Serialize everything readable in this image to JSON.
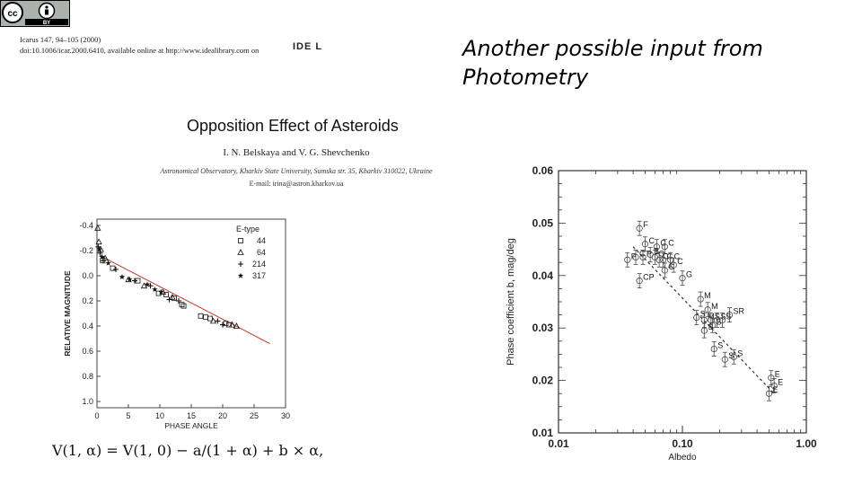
{
  "header": {
    "cc_badge": {
      "cc": "cc",
      "by": "BY"
    },
    "citation_line1": "Icarus 147, 94–105 (2000)",
    "citation_line2": "doi:10.1006/icar.2000.6410, available online at http://www.idealibrary.com on",
    "ideal_logo": "IDE L",
    "slide_title_line1": "Another possible input from",
    "slide_title_line2": "Photometry"
  },
  "paper": {
    "title": "Opposition Effect of Asteroids",
    "authors": "I. N. Belskaya and V. G. Shevchenko",
    "affiliation": "Astronomical Observatory, Kharkiv State University, Sumska str. 35, Kharkiv 310022, Ukraine",
    "email": "E-mail: irina@astron.kharkov.ua",
    "formula": "V(1, α) = V(1, 0) − a/(1 + α) + b × α,"
  },
  "chart_data": [
    {
      "type": "scatter",
      "title": "",
      "xlabel": "PHASE ANGLE",
      "ylabel": "RELATIVE MAGNITUDE",
      "xlim": [
        0,
        30
      ],
      "ylim": [
        -0.45,
        1.05
      ],
      "y_inverted": true,
      "x_ticks": [
        "0",
        "5",
        "10",
        "15",
        "20",
        "25",
        "30"
      ],
      "y_ticks": [
        "-0.4",
        "-0.2",
        "0.0",
        "0.2",
        "0.4",
        "0.6",
        "0.8",
        "1.0"
      ],
      "legend_title": "E-type",
      "legend_position": "top-right",
      "line_color": "#c0392b",
      "fit_line": {
        "x": [
          0.5,
          27.5
        ],
        "y": [
          -0.16,
          0.54
        ]
      },
      "series": [
        {
          "name": "44",
          "marker": "square",
          "points": [
            [
              0.9,
              -0.12
            ],
            [
              2.5,
              -0.06
            ],
            [
              6.5,
              0.04
            ],
            [
              9.8,
              0.14
            ],
            [
              11.0,
              0.15
            ],
            [
              12.3,
              0.18
            ],
            [
              13.5,
              0.23
            ],
            [
              13.8,
              0.24
            ],
            [
              16.5,
              0.32
            ],
            [
              17.3,
              0.33
            ],
            [
              18.0,
              0.34
            ],
            [
              20.5,
              0.38
            ],
            [
              21.0,
              0.39
            ]
          ]
        },
        {
          "name": "64",
          "marker": "triangle",
          "points": [
            [
              0.1,
              -0.38
            ],
            [
              0.3,
              -0.27
            ],
            [
              0.6,
              -0.21
            ],
            [
              1.3,
              -0.14
            ],
            [
              5.0,
              0.03
            ],
            [
              7.5,
              0.08
            ],
            [
              10.5,
              0.13
            ],
            [
              12.0,
              0.17
            ],
            [
              18.5,
              0.36
            ],
            [
              21.5,
              0.39
            ],
            [
              22.2,
              0.4
            ]
          ]
        },
        {
          "name": "214",
          "marker": "plus",
          "points": [
            [
              0.2,
              -0.23
            ],
            [
              0.5,
              -0.18
            ],
            [
              1.0,
              -0.12
            ],
            [
              3.0,
              -0.05
            ],
            [
              6.0,
              0.04
            ],
            [
              8.5,
              0.08
            ],
            [
              11.5,
              0.19
            ],
            [
              13.0,
              0.2
            ],
            [
              19.2,
              0.36
            ],
            [
              20.0,
              0.39
            ]
          ]
        },
        {
          "name": "317",
          "marker": "star",
          "points": [
            [
              0.4,
              -0.21
            ],
            [
              0.8,
              -0.15
            ],
            [
              1.8,
              -0.1
            ],
            [
              4.0,
              0.01
            ],
            [
              5.2,
              0.03
            ],
            [
              8.0,
              0.07
            ],
            [
              9.2,
              0.11
            ],
            [
              10.2,
              0.13
            ]
          ]
        }
      ]
    },
    {
      "type": "scatter",
      "title": "",
      "xlabel": "Albedo",
      "ylabel": "Phase coefficient b, mag/deg",
      "x_scale": "log",
      "xlim": [
        0.01,
        1.0
      ],
      "ylim": [
        0.01,
        0.06
      ],
      "x_ticks": [
        "0.01",
        "0.10",
        "1.00"
      ],
      "y_ticks": [
        "0.01",
        "0.02",
        "0.03",
        "0.04",
        "0.05",
        "0.06"
      ],
      "trend_line": {
        "x": [
          0.04,
          0.55
        ],
        "y": [
          0.0455,
          0.0175
        ]
      },
      "points": [
        {
          "label": "F",
          "albedo": 0.045,
          "b": 0.049
        },
        {
          "label": "C",
          "albedo": 0.05,
          "b": 0.046
        },
        {
          "label": "C",
          "albedo": 0.062,
          "b": 0.0455
        },
        {
          "label": "C",
          "albedo": 0.072,
          "b": 0.0455
        },
        {
          "label": "P",
          "albedo": 0.036,
          "b": 0.043
        },
        {
          "label": "C",
          "albedo": 0.042,
          "b": 0.0435
        },
        {
          "label": "P",
          "albedo": 0.048,
          "b": 0.0435
        },
        {
          "label": "B",
          "albedo": 0.055,
          "b": 0.044
        },
        {
          "label": "C",
          "albedo": 0.06,
          "b": 0.0435
        },
        {
          "label": "C",
          "albedo": 0.065,
          "b": 0.043
        },
        {
          "label": "C",
          "albedo": 0.07,
          "b": 0.043
        },
        {
          "label": "C",
          "albedo": 0.08,
          "b": 0.043
        },
        {
          "label": "C",
          "albedo": 0.085,
          "b": 0.042
        },
        {
          "label": "C",
          "albedo": 0.072,
          "b": 0.041
        },
        {
          "label": "CP",
          "albedo": 0.045,
          "b": 0.039
        },
        {
          "label": "G",
          "albedo": 0.1,
          "b": 0.0395
        },
        {
          "label": "M",
          "albedo": 0.14,
          "b": 0.0355
        },
        {
          "label": "M",
          "albedo": 0.16,
          "b": 0.0335
        },
        {
          "label": "S",
          "albedo": 0.13,
          "b": 0.032
        },
        {
          "label": "M",
          "albedo": 0.15,
          "b": 0.0315
        },
        {
          "label": "S",
          "albedo": 0.17,
          "b": 0.0315
        },
        {
          "label": "S",
          "albedo": 0.19,
          "b": 0.0315
        },
        {
          "label": "S",
          "albedo": 0.21,
          "b": 0.0315
        },
        {
          "label": "SR",
          "albedo": 0.24,
          "b": 0.0325
        },
        {
          "label": "S",
          "albedo": 0.175,
          "b": 0.0305
        },
        {
          "label": "S",
          "albedo": 0.15,
          "b": 0.0295
        },
        {
          "label": "S",
          "albedo": 0.18,
          "b": 0.026
        },
        {
          "label": "S",
          "albedo": 0.22,
          "b": 0.024
        },
        {
          "label": "S",
          "albedo": 0.26,
          "b": 0.0245
        },
        {
          "label": "E",
          "albedo": 0.52,
          "b": 0.0205
        },
        {
          "label": "E",
          "albedo": 0.55,
          "b": 0.019
        },
        {
          "label": "E",
          "albedo": 0.5,
          "b": 0.0175
        }
      ]
    }
  ]
}
